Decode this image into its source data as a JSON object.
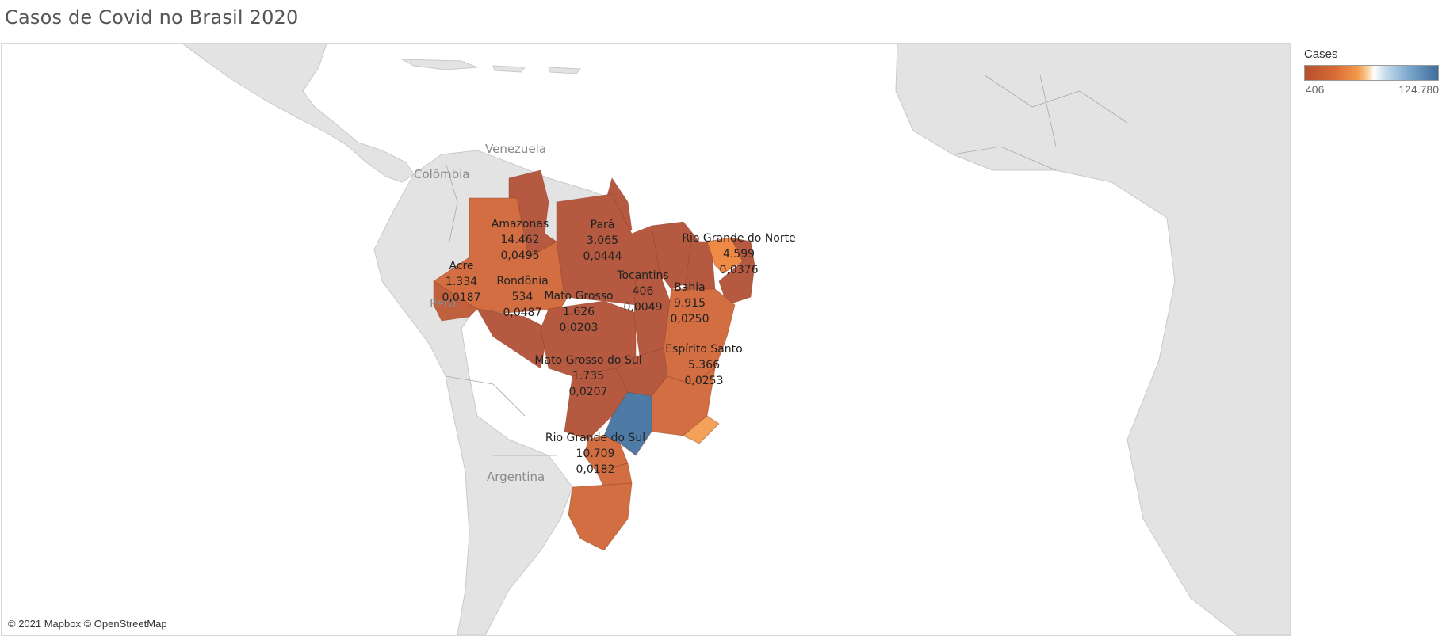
{
  "title": "Casos de Covid no Brasil 2020",
  "attribution": "© 2021 Mapbox © OpenStreetMap",
  "legend": {
    "title": "Cases",
    "min_label": "406",
    "max_label": "124.780",
    "colors": [
      "#b5502f",
      "#d86a35",
      "#f49a4c",
      "#ffffff",
      "#7ba7cc",
      "#3f6e9b"
    ]
  },
  "country_labels": {
    "venezuela": "Venezuela",
    "colombia": "Colômbia",
    "peru": "Peru",
    "argentina": "Argentina"
  },
  "states": [
    {
      "name": "Amazonas",
      "cases": "14.462",
      "rate": "0,0495"
    },
    {
      "name": "Pará",
      "cases": "3.065",
      "rate": "0,0444"
    },
    {
      "name": "Rio Grande do Norte",
      "cases": "4.599",
      "rate": "0,0376"
    },
    {
      "name": "Acre",
      "cases": "1.334",
      "rate": "0,0187"
    },
    {
      "name": "Rondônia",
      "cases": "534",
      "rate": "0,0487"
    },
    {
      "name": "Mato Grosso",
      "cases": "1.626",
      "rate": "0,0203"
    },
    {
      "name": "Tocantins",
      "cases": "406",
      "rate": "0,0049"
    },
    {
      "name": "Bahia",
      "cases": "9.915",
      "rate": "0,0250"
    },
    {
      "name": "Espírito Santo",
      "cases": "5.366",
      "rate": "0,0253"
    },
    {
      "name": "Mato Grosso do Sul",
      "cases": "1.735",
      "rate": "0,0207"
    },
    {
      "name": "Rio Grande do Sul",
      "cases": "10.709",
      "rate": "0,0182"
    }
  ]
}
